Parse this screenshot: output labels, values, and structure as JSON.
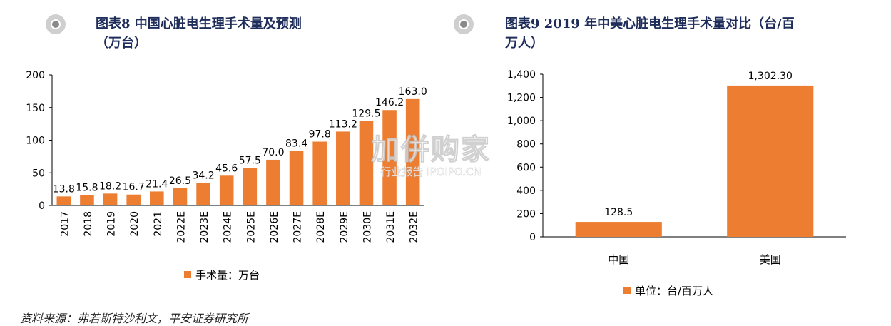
{
  "left": {
    "title_line1": "图表8  中国心脏电生理手术量及预测",
    "title_line2": "（万台）"
  },
  "right": {
    "title_line1": "图表9  2019 年中美心脏电生理手术量对比（台/百",
    "title_line2": "万人）"
  },
  "source_text": "资料来源：弗若斯特沙利文，平安证券研究所",
  "watermark": {
    "brand": "加併购家",
    "sub": "行业报告 IPOIPO.CN"
  },
  "colors": {
    "bar": "#ED7D31",
    "title": "#1f2d5a",
    "axis": "#000000"
  },
  "chart_data": [
    {
      "type": "bar",
      "categories": [
        "2017",
        "2018",
        "2019",
        "2020",
        "2021",
        "2022E",
        "2023E",
        "2024E",
        "2025E",
        "2026E",
        "2027E",
        "2028E",
        "2029E",
        "2030E",
        "2031E",
        "2032E"
      ],
      "values": [
        13.8,
        15.8,
        18.2,
        16.7,
        21.4,
        26.5,
        34.2,
        45.6,
        57.5,
        70.0,
        83.4,
        97.8,
        113.2,
        129.5,
        146.2,
        163.0
      ],
      "value_labels": [
        "13.8",
        "15.8",
        "18.2",
        "16.7",
        "21.4",
        "26.5",
        "34.2",
        "45.6",
        "57.5",
        "70.0",
        "83.4",
        "97.8",
        "113.2",
        "129.5",
        "146.2",
        "163.0"
      ],
      "yticks": [
        0,
        50,
        100,
        150,
        200
      ],
      "ytick_labels": [
        "0",
        "50",
        "100",
        "150",
        "200"
      ],
      "ylim": [
        0,
        200
      ],
      "legend": "手术量：万台",
      "legend_placement": "bottom",
      "grid": false
    },
    {
      "type": "bar",
      "categories": [
        "中国",
        "美国"
      ],
      "values": [
        128.5,
        1302.3
      ],
      "value_labels": [
        "128.5",
        "1,302.30"
      ],
      "yticks": [
        0,
        200,
        400,
        600,
        800,
        1000,
        1200,
        1400
      ],
      "ytick_labels": [
        "0",
        "200",
        "400",
        "600",
        "800",
        "1,000",
        "1,200",
        "1,400"
      ],
      "ylim": [
        0,
        1400
      ],
      "legend": "单位：台/百万人",
      "legend_placement": "bottom",
      "grid": false
    }
  ]
}
